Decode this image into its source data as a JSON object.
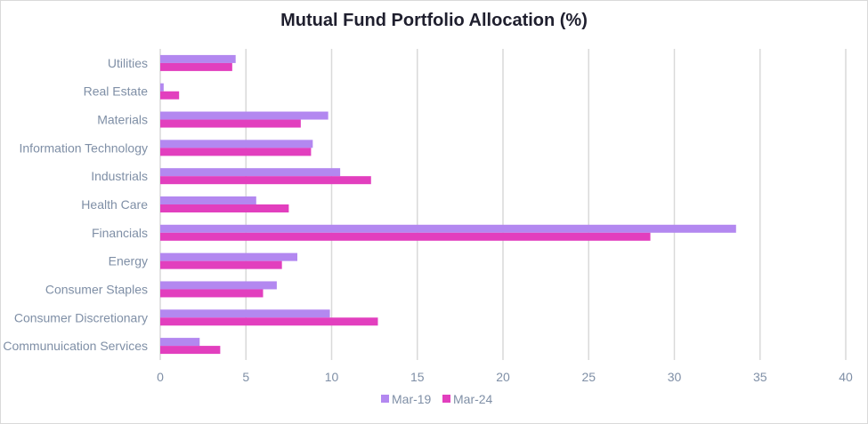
{
  "chart_data": {
    "type": "bar",
    "orientation": "horizontal",
    "title": "Mutual Fund Portfolio Allocation (%)",
    "xlabel": "",
    "ylabel": "",
    "xlim": [
      0,
      40
    ],
    "ticks": [
      "0",
      "5",
      "10",
      "15",
      "20",
      "25",
      "30",
      "35",
      "40"
    ],
    "grid": true,
    "legend_position": "bottom",
    "categories": [
      "Communuication Services",
      "Consumer Discretionary",
      "Consumer Staples",
      "Energy",
      "Financials",
      "Health Care",
      "Industrials",
      "Information Technology",
      "Materials",
      "Real Estate",
      "Utilities"
    ],
    "series": [
      {
        "name": "Mar-19",
        "color": "#b388f0",
        "values": [
          2.3,
          9.9,
          6.8,
          8.0,
          33.6,
          5.6,
          10.5,
          8.9,
          9.8,
          0.2,
          4.4
        ]
      },
      {
        "name": "Mar-24",
        "color": "#e23fbe",
        "values": [
          3.5,
          12.7,
          6.0,
          7.1,
          28.6,
          7.5,
          12.3,
          8.8,
          8.2,
          1.1,
          4.2
        ]
      }
    ]
  }
}
